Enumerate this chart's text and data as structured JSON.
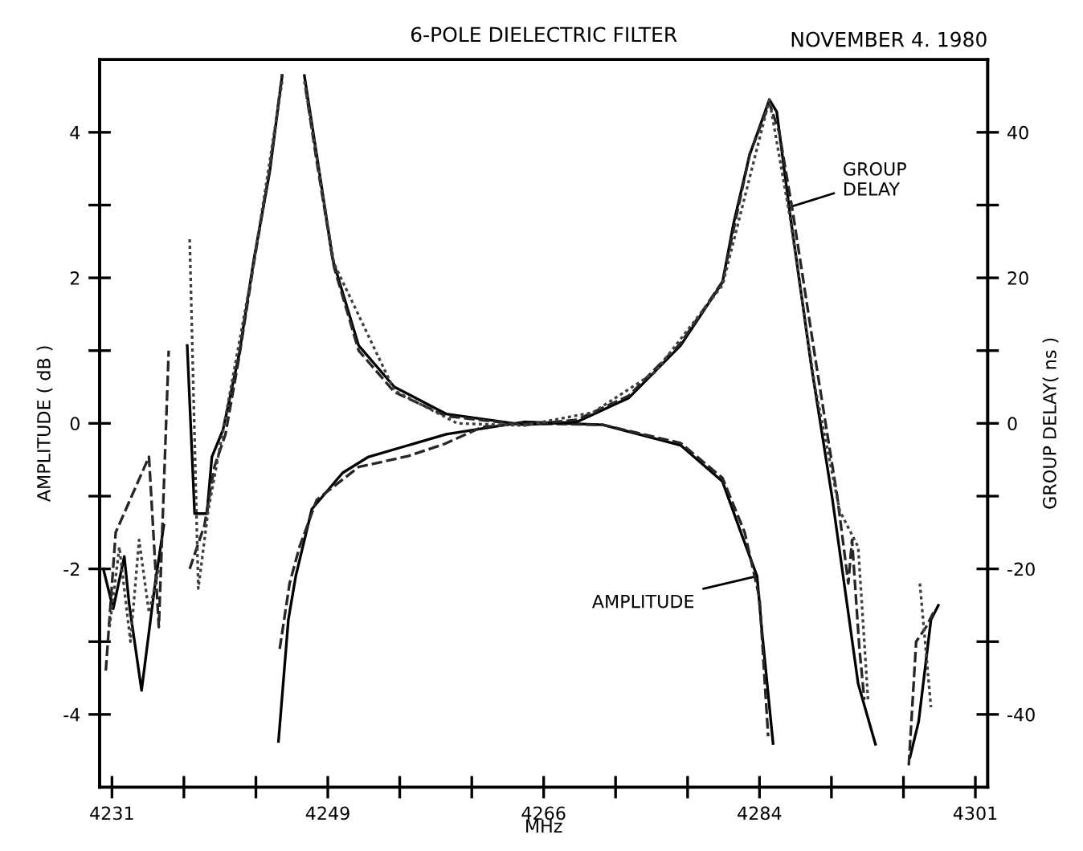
{
  "chart_data": {
    "type": "line",
    "title": "6-POLE DIELECTRIC FILTER",
    "xlabel": "MHz",
    "ylabel": "AMPLITUDE ( dB )",
    "y2label": "GROUP DELAY( ns )",
    "annotations": [
      "NOVEMBER 4. 1980",
      {
        "text": "AMPLITUDE",
        "x": 4283.3,
        "y": -2.1
      },
      {
        "text": "GROUP DELAY",
        "x": 4285.9,
        "y": 2.97
      }
    ],
    "xlim": [
      4230,
      4302
    ],
    "xticks": [
      4231,
      {
        "value": 4236.83,
        "label": null
      },
      {
        "value": 4242.67,
        "label": null
      },
      {
        "value": 4248.5,
        "label": "4249"
      },
      {
        "value": 4254.33,
        "label": null
      },
      {
        "value": 4260.17,
        "label": null
      },
      4266,
      {
        "value": 4271.83,
        "label": null
      },
      {
        "value": 4277.67,
        "label": null
      },
      {
        "value": 4283.5,
        "label": "4284"
      },
      {
        "value": 4289.33,
        "label": null
      },
      {
        "value": 4295.17,
        "label": null
      },
      4301
    ],
    "ylim": [
      -5,
      5
    ],
    "yticks": [
      -4,
      {
        "value": -3,
        "label": null
      },
      -2,
      {
        "value": -1,
        "label": null
      },
      0,
      {
        "value": 1,
        "label": null
      },
      2,
      {
        "value": 3,
        "label": null
      },
      4
    ],
    "y2lim": [
      -50,
      50
    ],
    "y2ticks": [
      -40,
      {
        "value": -30,
        "label": null
      },
      -20,
      {
        "value": -10,
        "label": null
      },
      0,
      {
        "value": 10,
        "label": null
      },
      20,
      {
        "value": 30,
        "label": null
      },
      40
    ],
    "series": [
      {
        "color": "#000000",
        "line_style": "solid",
        "axis": "y2",
        "x": [
          4230.3,
          4231.1,
          4232.0,
          4232.4,
          4233.4,
          4234.5,
          4235.2,
          4236.3,
          4237.1,
          4237.7,
          4238.7,
          4239.1,
          4240.0,
          4241.3,
          4242.5,
          4243.8,
          4244.8,
          4245.7,
          4246.6,
          4247.6,
          4248.9,
          4251.0,
          4253.9,
          4258.1,
          4264.4,
          4268.7,
          4272.9,
          4277.1,
          4280.5,
          4281.4,
          4282.7,
          4284.3,
          4284.9,
          4285.9,
          4287.7,
          4289.4,
          4291.5,
          4292.9,
          4294.3,
          4295.7,
          4296.4,
          4297.4,
          4298.0
        ],
        "values": [
          -20,
          -25.5,
          -18.3,
          -24.9,
          -36.7,
          -22,
          -14,
          null,
          10.7,
          -12.4,
          -12.4,
          -4.6,
          -0.9,
          9.4,
          22.5,
          34.7,
          47.8,
          null,
          47.8,
          36.9,
          22.5,
          10.7,
          5.0,
          1.3,
          -0.2,
          0.2,
          3.5,
          10.7,
          19.4,
          27.5,
          36.9,
          44.5,
          42.8,
          29.7,
          7.9,
          -10.3,
          -35.8,
          -44.1,
          null,
          -45.9,
          -41.0,
          -27,
          -25
        ]
      },
      {
        "color": "#262626",
        "line_style": "dashed",
        "axis": "y2",
        "x": [
          4230.5,
          4231.3,
          4234.0,
          4234.8,
          4235.6,
          4236.3,
          4237.3,
          4238.5,
          4239.3,
          4240.2,
          4241.3,
          4242.5,
          4243.8,
          4244.8,
          4245.7,
          4246.7,
          4247.6,
          4249.0,
          4251.0,
          4253.9,
          4258.1,
          4264.4,
          4268.7,
          4272.9,
          4277.1,
          4280.5,
          4282.7,
          4284.3,
          4285.1,
          4286.2,
          4288.2,
          4289.8,
          4290.7,
          4291.0,
          4291.6,
          4292.0,
          4294.0,
          4295.6,
          4296.2,
          4297.0,
          4297.6
        ],
        "values": [
          -34,
          -15,
          -4.6,
          -28,
          10.0,
          null,
          -20,
          -14,
          -6,
          -1.5,
          9,
          22,
          35,
          48,
          null,
          46,
          36,
          21.5,
          10,
          4.3,
          1.0,
          -0.2,
          0.5,
          3.8,
          11,
          19.5,
          37,
          44,
          40,
          29,
          7,
          -10,
          -22,
          -16,
          -31,
          -38,
          null,
          -47,
          -30,
          -28,
          -26
        ]
      },
      {
        "color": "#404040",
        "line_style": "dotted",
        "axis": "y2",
        "x": [
          4230.8,
          4231.6,
          4232.5,
          4233.2,
          4234.0,
          4234.8,
          4236.0,
          4237.3,
          4238.0,
          4238.8,
          4240.0,
          4242.5,
          4244.8,
          4245.7,
          4246.6,
          4249.0,
          4253.9,
          4259.0,
          4264.4,
          4270.0,
          4275.0,
          4280.5,
          4284.3,
          4286.0,
          4288.0,
          4290.0,
          4291.5,
          4292.3,
          4294.0,
          4296.5,
          4297.4
        ],
        "values": [
          -28,
          -17,
          -30,
          -16,
          -26,
          -20,
          null,
          25.3,
          -22.7,
          -12,
          -1,
          22,
          47,
          null,
          47,
          22,
          4.5,
          0,
          -0.3,
          1.5,
          7,
          19,
          44.5,
          28,
          5,
          -12,
          -17,
          -38,
          null,
          -22,
          -39
        ]
      },
      {
        "color": "#000000",
        "line_style": "solid",
        "x": [
          4244.5,
          4245.3,
          4245.9,
          4247.2,
          4249.7,
          4251.8,
          4258.1,
          4264.4,
          4270.8,
          4277.1,
          4280.5,
          4282.1,
          4283.3,
          4283.7,
          4284.6
        ],
        "values": [
          -4.37,
          -2.7,
          -2.1,
          -1.18,
          -0.68,
          -0.46,
          -0.15,
          0.02,
          -0.02,
          -0.3,
          -0.8,
          -1.55,
          -2.1,
          -2.86,
          -4.4
        ]
      },
      {
        "color": "#262626",
        "line_style": "dashed",
        "x": [
          4244.6,
          4245.4,
          4246.2,
          4247.6,
          4251.0,
          4255.0,
          4258.0,
          4261.0,
          4264.4,
          4270.8,
          4277.1,
          4280.5,
          4282.3,
          4283.5,
          4284.2
        ],
        "values": [
          -3.1,
          -2.2,
          -1.7,
          -1.05,
          -0.6,
          -0.45,
          -0.28,
          -0.05,
          0.0,
          -0.02,
          -0.27,
          -0.75,
          -1.5,
          -2.4,
          -4.3
        ]
      }
    ]
  }
}
